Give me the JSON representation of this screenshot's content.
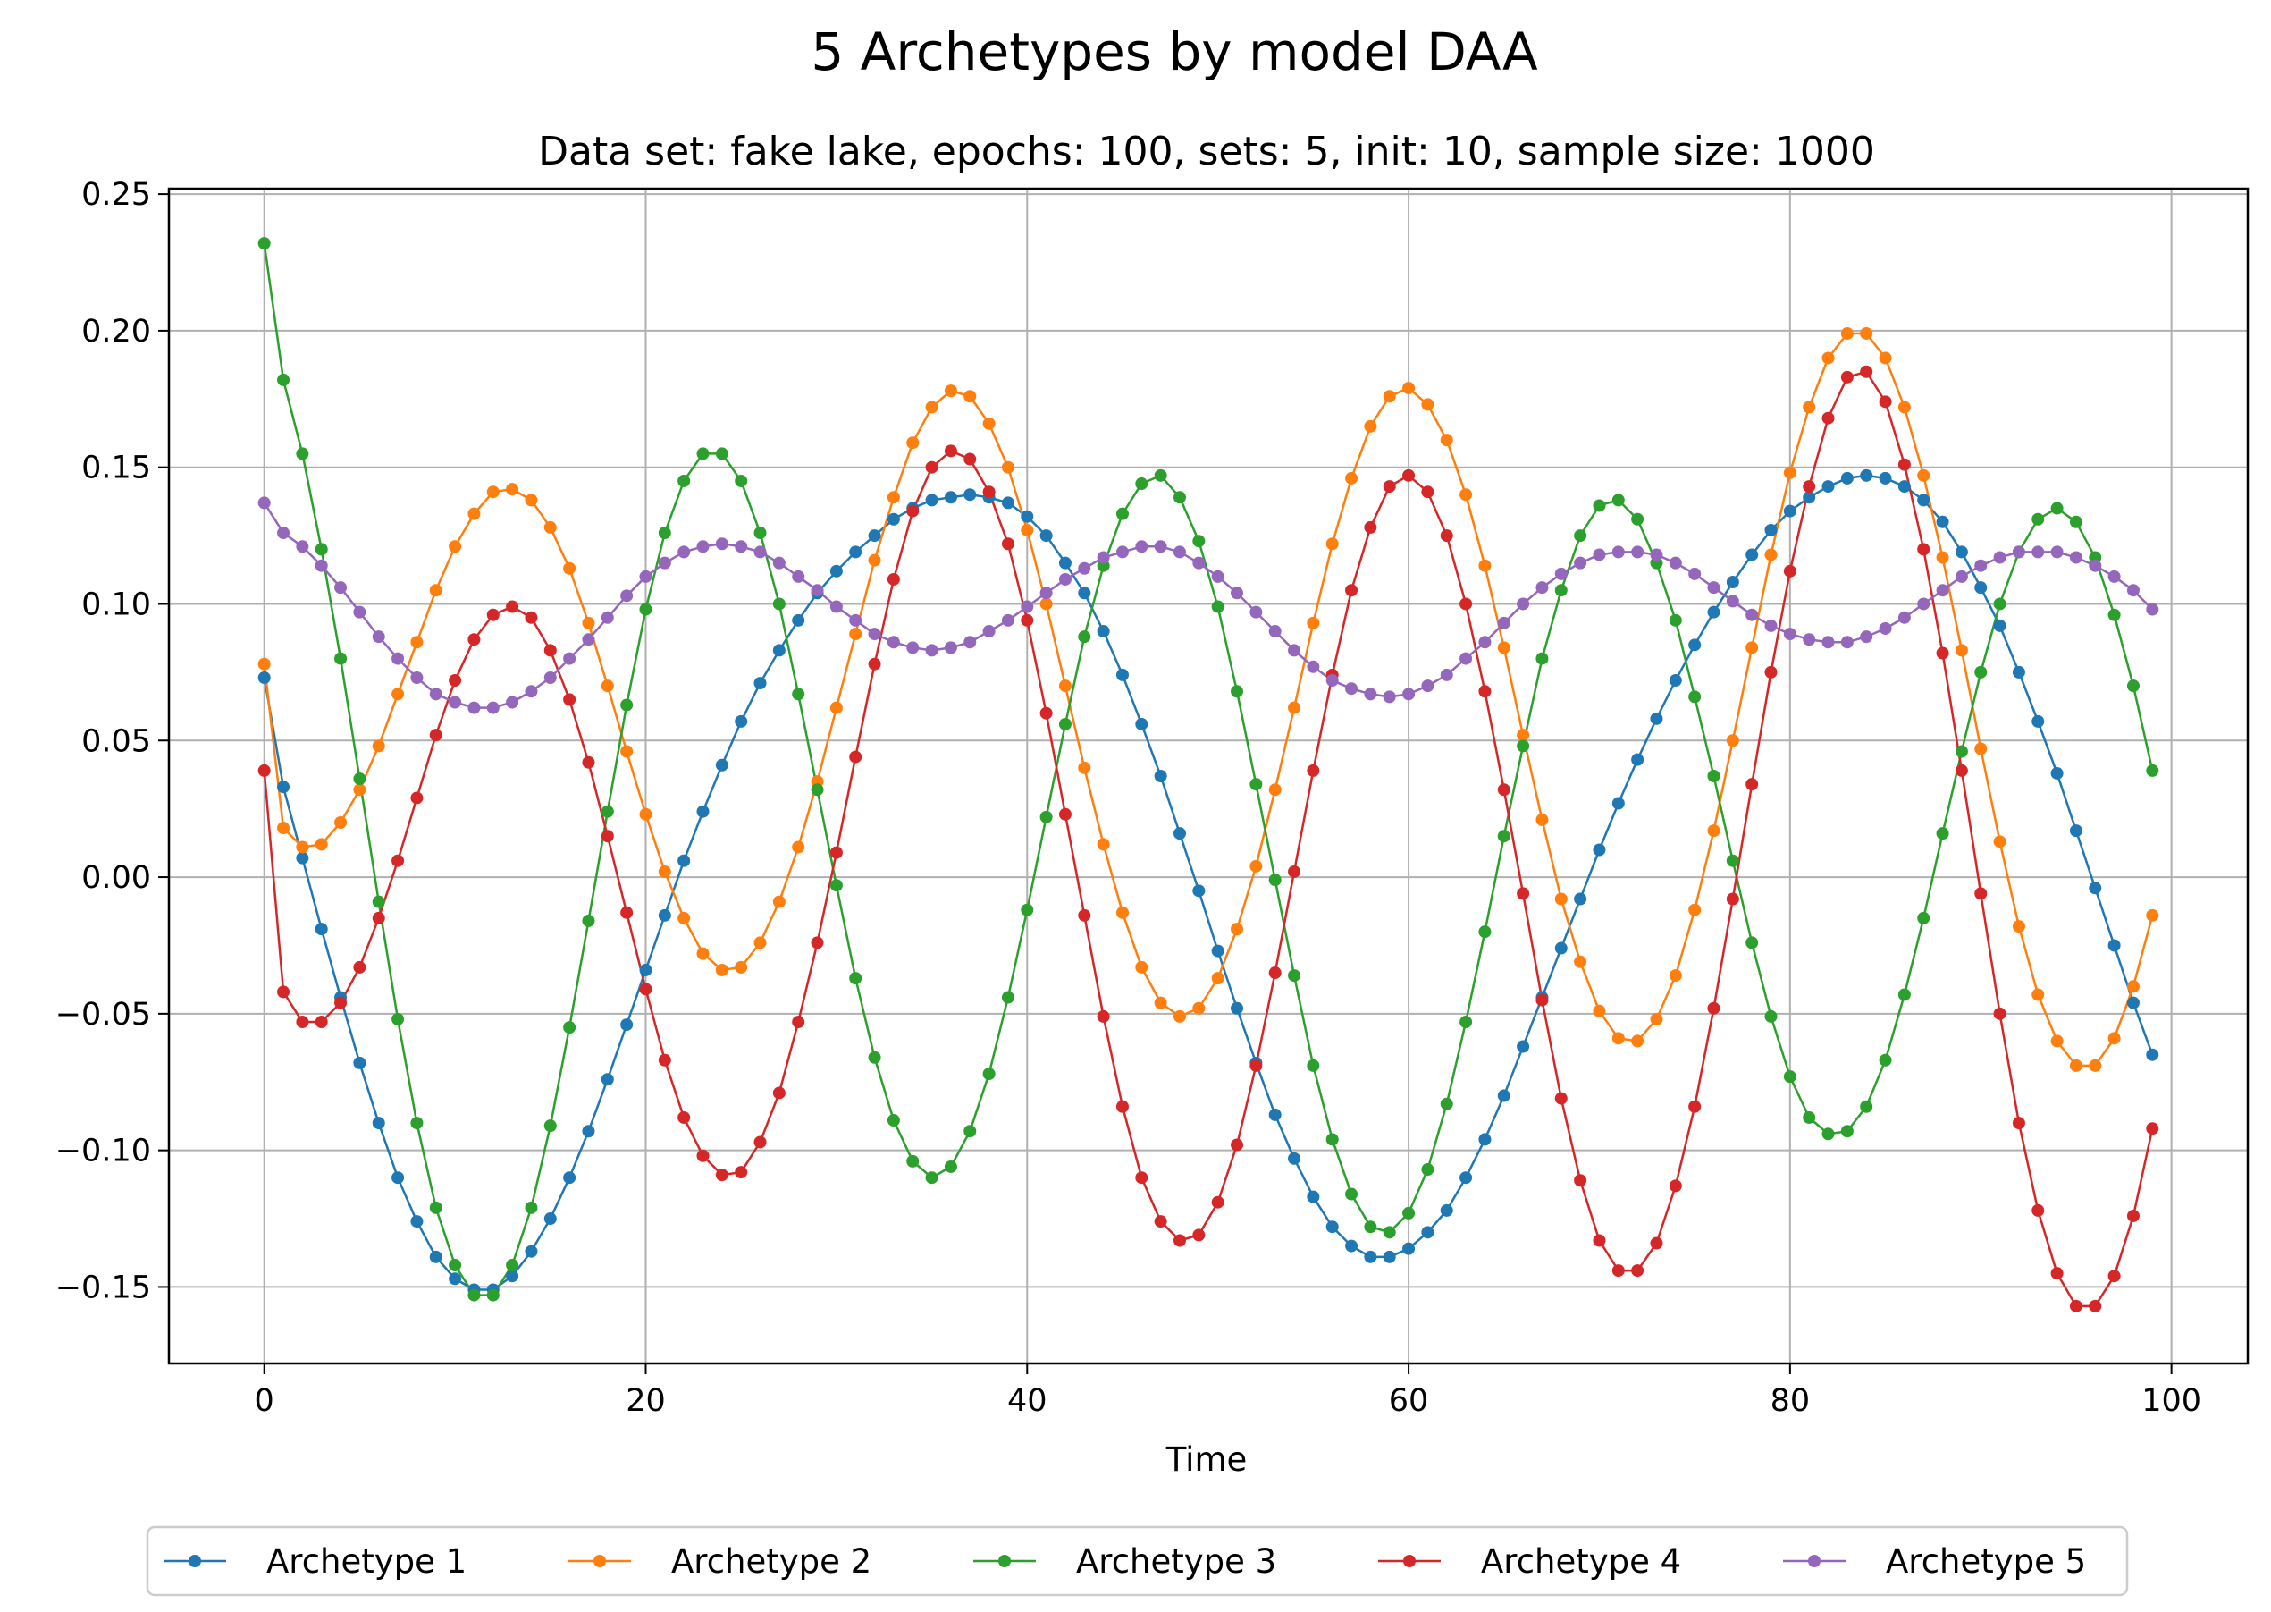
{
  "figure": {
    "suptitle": "5 Archetypes by model DAA"
  },
  "chart_data": {
    "type": "line",
    "title": "Data set: fake lake, epochs: 100, sets: 5, init: 10, sample size: 1000",
    "xlabel": "Time",
    "ylabel": "",
    "xlim": [
      -5,
      104
    ],
    "ylim": [
      -0.178,
      0.252
    ],
    "xticks": [
      0,
      20,
      40,
      60,
      80,
      100
    ],
    "yticks": [
      -0.15,
      -0.1,
      -0.05,
      0.0,
      0.05,
      0.1,
      0.15,
      0.2,
      0.25
    ],
    "xtick_labels": [
      "0",
      "20",
      "40",
      "60",
      "80",
      "100"
    ],
    "ytick_labels": [
      "−0.15",
      "−0.10",
      "−0.05",
      "0.00",
      "0.05",
      "0.10",
      "0.15",
      "0.20",
      "0.25"
    ],
    "grid": true,
    "legend_position": "bottom-center, below the axes",
    "x": [
      0,
      1,
      2,
      3,
      4,
      5,
      6,
      7,
      8,
      9,
      10,
      11,
      12,
      13,
      14,
      15,
      16,
      17,
      18,
      19,
      20,
      21,
      22,
      23,
      24,
      25,
      26,
      27,
      28,
      29,
      30,
      31,
      32,
      33,
      34,
      35,
      36,
      37,
      38,
      39,
      40,
      41,
      42,
      43,
      44,
      45,
      46,
      47,
      48,
      49,
      50,
      51,
      52,
      53,
      54,
      55,
      56,
      57,
      58,
      59,
      60,
      61,
      62,
      63,
      64,
      65,
      66,
      67,
      68,
      69,
      70,
      71,
      72,
      73,
      74,
      75,
      76,
      77,
      78,
      79,
      80,
      81,
      82,
      83,
      84,
      85,
      86,
      87,
      88,
      89,
      90,
      91,
      92,
      93,
      94,
      95,
      96,
      97,
      98,
      99
    ],
    "series": [
      {
        "name": "Archetype 1",
        "color": "#1f77b4",
        "values": [
          0.073,
          0.033,
          0.007,
          -0.019,
          -0.044,
          -0.068,
          -0.09,
          -0.11,
          -0.126,
          -0.139,
          -0.147,
          -0.151,
          -0.151,
          -0.146,
          -0.137,
          -0.125,
          -0.11,
          -0.093,
          -0.074,
          -0.054,
          -0.034,
          -0.014,
          0.006,
          0.024,
          0.041,
          0.057,
          0.071,
          0.083,
          0.094,
          0.104,
          0.112,
          0.119,
          0.125,
          0.131,
          0.135,
          0.138,
          0.139,
          0.14,
          0.139,
          0.137,
          0.132,
          0.125,
          0.115,
          0.104,
          0.09,
          0.074,
          0.056,
          0.037,
          0.016,
          -0.005,
          -0.027,
          -0.048,
          -0.068,
          -0.087,
          -0.103,
          -0.117,
          -0.128,
          -0.135,
          -0.139,
          -0.139,
          -0.136,
          -0.13,
          -0.122,
          -0.11,
          -0.096,
          -0.08,
          -0.062,
          -0.044,
          -0.026,
          -0.008,
          0.01,
          0.027,
          0.043,
          0.058,
          0.072,
          0.085,
          0.097,
          0.108,
          0.118,
          0.127,
          0.134,
          0.139,
          0.143,
          0.146,
          0.147,
          0.146,
          0.143,
          0.138,
          0.13,
          0.119,
          0.106,
          0.092,
          0.075,
          0.057,
          0.038,
          0.017,
          -0.004,
          -0.025,
          -0.046,
          -0.065
        ]
      },
      {
        "name": "Archetype 2",
        "color": "#ff7f0e",
        "values": [
          0.078,
          0.018,
          0.011,
          0.012,
          0.02,
          0.032,
          0.048,
          0.067,
          0.086,
          0.105,
          0.121,
          0.133,
          0.141,
          0.142,
          0.138,
          0.128,
          0.113,
          0.093,
          0.07,
          0.046,
          0.023,
          0.002,
          -0.015,
          -0.028,
          -0.034,
          -0.033,
          -0.024,
          -0.009,
          0.011,
          0.035,
          0.062,
          0.089,
          0.116,
          0.139,
          0.159,
          0.172,
          0.178,
          0.176,
          0.166,
          0.15,
          0.127,
          0.1,
          0.07,
          0.04,
          0.012,
          -0.013,
          -0.033,
          -0.046,
          -0.051,
          -0.048,
          -0.037,
          -0.019,
          0.004,
          0.032,
          0.062,
          0.093,
          0.122,
          0.146,
          0.165,
          0.176,
          0.179,
          0.173,
          0.16,
          0.14,
          0.114,
          0.084,
          0.052,
          0.021,
          -0.008,
          -0.031,
          -0.049,
          -0.059,
          -0.06,
          -0.052,
          -0.036,
          -0.012,
          0.017,
          0.05,
          0.084,
          0.118,
          0.148,
          0.172,
          0.19,
          0.199,
          0.199,
          0.19,
          0.172,
          0.147,
          0.117,
          0.083,
          0.047,
          0.013,
          -0.018,
          -0.043,
          -0.06,
          -0.069,
          -0.069,
          -0.059,
          -0.04,
          -0.014
        ]
      },
      {
        "name": "Archetype 3",
        "color": "#2ca02c",
        "values": [
          0.232,
          0.182,
          0.155,
          0.12,
          0.08,
          0.036,
          -0.009,
          -0.052,
          -0.09,
          -0.121,
          -0.142,
          -0.153,
          -0.153,
          -0.142,
          -0.121,
          -0.091,
          -0.055,
          -0.016,
          0.024,
          0.063,
          0.098,
          0.126,
          0.145,
          0.155,
          0.155,
          0.145,
          0.126,
          0.1,
          0.067,
          0.032,
          -0.003,
          -0.037,
          -0.066,
          -0.089,
          -0.104,
          -0.11,
          -0.106,
          -0.093,
          -0.072,
          -0.044,
          -0.012,
          0.022,
          0.056,
          0.088,
          0.114,
          0.133,
          0.144,
          0.147,
          0.139,
          0.123,
          0.099,
          0.068,
          0.034,
          -0.001,
          -0.036,
          -0.069,
          -0.096,
          -0.116,
          -0.128,
          -0.13,
          -0.123,
          -0.107,
          -0.083,
          -0.053,
          -0.02,
          0.015,
          0.048,
          0.08,
          0.105,
          0.125,
          0.136,
          0.138,
          0.131,
          0.115,
          0.094,
          0.066,
          0.037,
          0.006,
          -0.024,
          -0.051,
          -0.073,
          -0.088,
          -0.094,
          -0.093,
          -0.084,
          -0.067,
          -0.043,
          -0.015,
          0.016,
          0.046,
          0.075,
          0.1,
          0.119,
          0.131,
          0.135,
          0.13,
          0.117,
          0.096,
          0.07,
          0.039
        ]
      },
      {
        "name": "Archetype 4",
        "color": "#d62728",
        "values": [
          0.039,
          -0.042,
          -0.053,
          -0.053,
          -0.046,
          -0.033,
          -0.015,
          0.006,
          0.029,
          0.052,
          0.072,
          0.087,
          0.096,
          0.099,
          0.095,
          0.083,
          0.065,
          0.042,
          0.015,
          -0.013,
          -0.041,
          -0.067,
          -0.088,
          -0.102,
          -0.109,
          -0.108,
          -0.097,
          -0.079,
          -0.053,
          -0.024,
          0.009,
          0.044,
          0.078,
          0.109,
          0.134,
          0.15,
          0.156,
          0.153,
          0.141,
          0.122,
          0.094,
          0.06,
          0.023,
          -0.014,
          -0.051,
          -0.084,
          -0.11,
          -0.126,
          -0.133,
          -0.131,
          -0.119,
          -0.098,
          -0.069,
          -0.035,
          0.002,
          0.039,
          0.074,
          0.105,
          0.128,
          0.143,
          0.147,
          0.141,
          0.125,
          0.1,
          0.068,
          0.032,
          -0.006,
          -0.045,
          -0.081,
          -0.111,
          -0.133,
          -0.144,
          -0.144,
          -0.134,
          -0.113,
          -0.084,
          -0.048,
          -0.008,
          0.034,
          0.075,
          0.112,
          0.143,
          0.168,
          0.183,
          0.185,
          0.174,
          0.151,
          0.12,
          0.082,
          0.039,
          -0.006,
          -0.05,
          -0.09,
          -0.122,
          -0.145,
          -0.157,
          -0.157,
          -0.146,
          -0.124,
          -0.092
        ]
      },
      {
        "name": "Archetype 5",
        "color": "#9467bd",
        "values": [
          0.137,
          0.126,
          0.121,
          0.114,
          0.106,
          0.097,
          0.088,
          0.08,
          0.073,
          0.067,
          0.064,
          0.062,
          0.062,
          0.064,
          0.068,
          0.073,
          0.08,
          0.087,
          0.095,
          0.103,
          0.11,
          0.115,
          0.119,
          0.121,
          0.122,
          0.121,
          0.119,
          0.115,
          0.11,
          0.105,
          0.099,
          0.094,
          0.089,
          0.086,
          0.084,
          0.083,
          0.084,
          0.086,
          0.09,
          0.094,
          0.099,
          0.104,
          0.109,
          0.113,
          0.117,
          0.119,
          0.121,
          0.121,
          0.119,
          0.115,
          0.11,
          0.104,
          0.097,
          0.09,
          0.083,
          0.077,
          0.072,
          0.069,
          0.067,
          0.066,
          0.067,
          0.07,
          0.074,
          0.08,
          0.086,
          0.093,
          0.1,
          0.106,
          0.111,
          0.115,
          0.118,
          0.119,
          0.119,
          0.118,
          0.115,
          0.111,
          0.106,
          0.101,
          0.096,
          0.092,
          0.089,
          0.087,
          0.086,
          0.086,
          0.088,
          0.091,
          0.095,
          0.1,
          0.105,
          0.11,
          0.114,
          0.117,
          0.119,
          0.119,
          0.119,
          0.117,
          0.114,
          0.11,
          0.105,
          0.098
        ]
      }
    ]
  }
}
